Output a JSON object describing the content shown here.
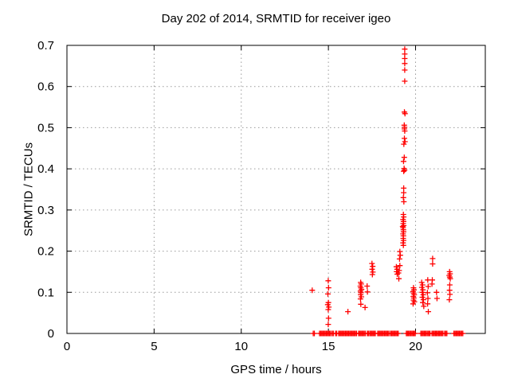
{
  "chart_data": {
    "type": "scatter",
    "title": "Day 202 of 2014, SRMTID for receiver igeo",
    "xlabel": "GPS time / hours",
    "ylabel": "SRMTID / TECUs",
    "xlim": [
      0,
      24
    ],
    "ylim": [
      0,
      0.7
    ],
    "xticks": [
      0,
      5,
      10,
      15,
      20
    ],
    "yticks": [
      0,
      0.1,
      0.2,
      0.3,
      0.4,
      0.5,
      0.6,
      0.7
    ],
    "grid": true,
    "legend": "none",
    "marker": "plus",
    "marker_color": "#ff0000",
    "grid_color": "#9a9a9a",
    "border_color": "#000000",
    "points": [
      [
        14.07,
        0.105
      ],
      [
        14.99,
        0.128
      ],
      [
        15.01,
        0.111
      ],
      [
        14.97,
        0.096
      ],
      [
        15.0,
        0.075
      ],
      [
        14.96,
        0.07
      ],
      [
        15.02,
        0.064
      ],
      [
        14.99,
        0.058
      ],
      [
        15.01,
        0.037
      ],
      [
        14.99,
        0.022
      ],
      [
        16.12,
        0.053
      ],
      [
        16.85,
        0.124
      ],
      [
        16.88,
        0.12
      ],
      [
        16.83,
        0.115
      ],
      [
        16.86,
        0.111
      ],
      [
        16.9,
        0.107
      ],
      [
        16.84,
        0.103
      ],
      [
        16.87,
        0.099
      ],
      [
        16.85,
        0.094
      ],
      [
        16.89,
        0.089
      ],
      [
        16.84,
        0.084
      ],
      [
        16.86,
        0.071
      ],
      [
        17.22,
        0.115
      ],
      [
        17.24,
        0.101
      ],
      [
        17.1,
        0.063
      ],
      [
        17.5,
        0.17
      ],
      [
        17.54,
        0.163
      ],
      [
        17.51,
        0.156
      ],
      [
        17.55,
        0.149
      ],
      [
        17.52,
        0.143
      ],
      [
        18.9,
        0.162
      ],
      [
        18.94,
        0.156
      ],
      [
        18.91,
        0.15
      ],
      [
        18.95,
        0.144
      ],
      [
        19.1,
        0.199
      ],
      [
        19.12,
        0.19
      ],
      [
        19.08,
        0.181
      ],
      [
        19.1,
        0.165
      ],
      [
        19.06,
        0.153
      ],
      [
        19.02,
        0.147
      ],
      [
        19.04,
        0.133
      ],
      [
        19.3,
        0.289
      ],
      [
        19.32,
        0.283
      ],
      [
        19.28,
        0.277
      ],
      [
        19.31,
        0.272
      ],
      [
        19.29,
        0.267
      ],
      [
        19.32,
        0.262
      ],
      [
        19.28,
        0.257
      ],
      [
        19.3,
        0.252
      ],
      [
        19.31,
        0.247
      ],
      [
        19.28,
        0.242
      ],
      [
        19.3,
        0.237
      ],
      [
        19.29,
        0.231
      ],
      [
        19.31,
        0.226
      ],
      [
        19.28,
        0.22
      ],
      [
        19.3,
        0.214
      ],
      [
        19.26,
        0.26
      ],
      [
        19.32,
        0.353
      ],
      [
        19.32,
        0.342
      ],
      [
        19.3,
        0.33
      ],
      [
        19.33,
        0.32
      ],
      [
        19.35,
        0.428
      ],
      [
        19.31,
        0.418
      ],
      [
        19.34,
        0.401
      ],
      [
        19.37,
        0.397
      ],
      [
        19.32,
        0.394
      ],
      [
        19.36,
        0.474
      ],
      [
        19.39,
        0.466
      ],
      [
        19.33,
        0.46
      ],
      [
        19.35,
        0.506
      ],
      [
        19.37,
        0.501
      ],
      [
        19.36,
        0.497
      ],
      [
        19.38,
        0.492
      ],
      [
        19.36,
        0.538
      ],
      [
        19.39,
        0.534
      ],
      [
        19.38,
        0.691
      ],
      [
        19.38,
        0.679
      ],
      [
        19.38,
        0.668
      ],
      [
        19.38,
        0.656
      ],
      [
        19.38,
        0.64
      ],
      [
        19.38,
        0.613
      ],
      [
        19.88,
        0.111
      ],
      [
        19.91,
        0.106
      ],
      [
        19.86,
        0.102
      ],
      [
        19.89,
        0.098
      ],
      [
        19.92,
        0.094
      ],
      [
        19.87,
        0.09
      ],
      [
        19.9,
        0.086
      ],
      [
        19.88,
        0.081
      ],
      [
        19.93,
        0.077
      ],
      [
        19.86,
        0.072
      ],
      [
        20.35,
        0.124
      ],
      [
        20.4,
        0.118
      ],
      [
        20.36,
        0.112
      ],
      [
        20.42,
        0.106
      ],
      [
        20.38,
        0.1
      ],
      [
        20.44,
        0.094
      ],
      [
        20.39,
        0.088
      ],
      [
        20.45,
        0.082
      ],
      [
        20.41,
        0.075
      ],
      [
        20.47,
        0.066
      ],
      [
        20.7,
        0.13
      ],
      [
        20.72,
        0.114
      ],
      [
        20.68,
        0.099
      ],
      [
        20.71,
        0.085
      ],
      [
        20.69,
        0.072
      ],
      [
        20.73,
        0.053
      ],
      [
        20.98,
        0.182
      ],
      [
        20.98,
        0.169
      ],
      [
        20.96,
        0.13
      ],
      [
        20.94,
        0.12
      ],
      [
        21.2,
        0.1
      ],
      [
        21.23,
        0.085
      ],
      [
        21.95,
        0.15
      ],
      [
        21.98,
        0.145
      ],
      [
        21.93,
        0.141
      ],
      [
        21.96,
        0.137
      ],
      [
        21.99,
        0.133
      ],
      [
        21.96,
        0.118
      ],
      [
        21.95,
        0.105
      ],
      [
        21.97,
        0.095
      ],
      [
        21.94,
        0.082
      ]
    ],
    "zero_value_intervals_hours": [
      [
        14.13,
        14.2
      ],
      [
        14.49,
        15.13
      ],
      [
        15.22,
        15.31
      ],
      [
        15.41,
        15.5
      ],
      [
        15.59,
        16.64
      ],
      [
        16.73,
        17.14
      ],
      [
        17.23,
        17.33
      ],
      [
        17.37,
        17.74
      ],
      [
        17.83,
        18.51
      ],
      [
        18.56,
        19.02
      ],
      [
        19.47,
        20.02
      ],
      [
        20.3,
        20.62
      ],
      [
        20.7,
        20.85
      ],
      [
        20.94,
        21.16
      ],
      [
        21.19,
        21.4
      ],
      [
        21.44,
        21.62
      ],
      [
        21.67,
        21.85
      ],
      [
        22.2,
        22.77
      ]
    ]
  }
}
